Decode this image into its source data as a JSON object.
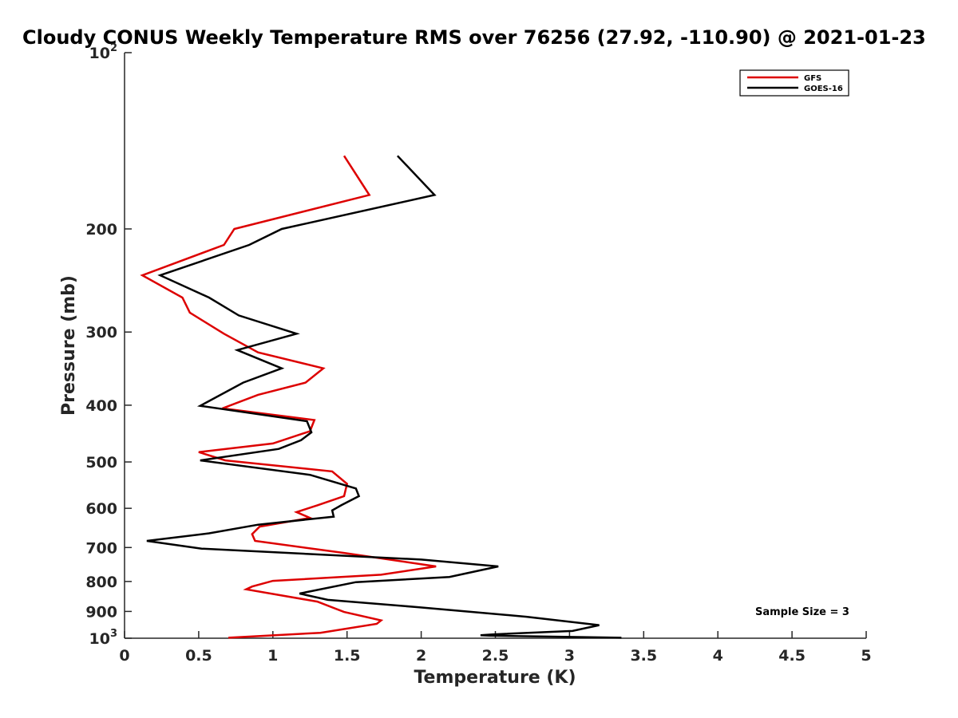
{
  "chart_data": {
    "type": "line",
    "title": "Cloudy CONUS Weekly Temperature RMS over 76256 (27.92, -110.90) @ 2021-01-23",
    "xlabel": "Temperature (K)",
    "ylabel": "Pressure (mb)",
    "xlim": [
      0,
      5
    ],
    "ylim": [
      100,
      1000
    ],
    "yscale": "log",
    "y_reversed": true,
    "grid": false,
    "legend_position": "top-right",
    "x_ticks": [
      {
        "value": 0,
        "label": "0"
      },
      {
        "value": 0.5,
        "label": "0.5"
      },
      {
        "value": 1,
        "label": "1"
      },
      {
        "value": 1.5,
        "label": "1.5"
      },
      {
        "value": 2,
        "label": "2"
      },
      {
        "value": 2.5,
        "label": "2.5"
      },
      {
        "value": 3,
        "label": "3"
      },
      {
        "value": 3.5,
        "label": "3.5"
      },
      {
        "value": 4,
        "label": "4"
      },
      {
        "value": 4.5,
        "label": "4.5"
      },
      {
        "value": 5,
        "label": "5"
      }
    ],
    "y_ticks": [
      {
        "value": 100,
        "label": "10",
        "sup": "2"
      },
      {
        "value": 200,
        "label": "200",
        "sup": ""
      },
      {
        "value": 300,
        "label": "300",
        "sup": ""
      },
      {
        "value": 400,
        "label": "400",
        "sup": ""
      },
      {
        "value": 500,
        "label": "500",
        "sup": ""
      },
      {
        "value": 600,
        "label": "600",
        "sup": ""
      },
      {
        "value": 700,
        "label": "700",
        "sup": ""
      },
      {
        "value": 800,
        "label": "800",
        "sup": ""
      },
      {
        "value": 900,
        "label": "900",
        "sup": ""
      },
      {
        "value": 1000,
        "label": "10",
        "sup": "3"
      }
    ],
    "series": [
      {
        "name": "GFS",
        "color": "#dd0000",
        "points": [
          [
            1.48,
            150
          ],
          [
            1.65,
            175
          ],
          [
            0.74,
            200
          ],
          [
            0.67,
            213
          ],
          [
            0.12,
            240
          ],
          [
            0.39,
            262
          ],
          [
            0.44,
            278
          ],
          [
            0.67,
            302
          ],
          [
            0.9,
            325
          ],
          [
            1.34,
            346
          ],
          [
            1.22,
            366
          ],
          [
            0.9,
            384
          ],
          [
            0.66,
            405
          ],
          [
            1.28,
            424
          ],
          [
            1.25,
            443
          ],
          [
            1.0,
            465
          ],
          [
            0.5,
            481
          ],
          [
            0.68,
            497
          ],
          [
            1.4,
            519
          ],
          [
            1.5,
            545
          ],
          [
            1.48,
            572
          ],
          [
            1.3,
            593
          ],
          [
            1.16,
            609
          ],
          [
            1.25,
            623
          ],
          [
            0.91,
            645
          ],
          [
            0.86,
            664
          ],
          [
            0.88,
            682
          ],
          [
            1.48,
            715
          ],
          [
            2.1,
            754
          ],
          [
            1.73,
            779
          ],
          [
            1.0,
            798
          ],
          [
            0.86,
            816
          ],
          [
            0.82,
            825
          ],
          [
            1.3,
            866
          ],
          [
            1.48,
            902
          ],
          [
            1.73,
            932
          ],
          [
            1.7,
            945
          ],
          [
            1.32,
            979
          ],
          [
            0.7,
            998
          ]
        ]
      },
      {
        "name": "GOES-16",
        "color": "#000000",
        "points": [
          [
            1.84,
            150
          ],
          [
            2.09,
            175
          ],
          [
            1.06,
            200
          ],
          [
            0.84,
            213
          ],
          [
            0.24,
            240
          ],
          [
            0.57,
            262
          ],
          [
            0.77,
            281
          ],
          [
            1.16,
            302
          ],
          [
            0.76,
            322
          ],
          [
            1.06,
            346
          ],
          [
            0.8,
            366
          ],
          [
            0.51,
            401
          ],
          [
            1.23,
            426
          ],
          [
            1.26,
            445
          ],
          [
            1.19,
            459
          ],
          [
            1.04,
            475
          ],
          [
            0.51,
            497
          ],
          [
            1.25,
            526
          ],
          [
            1.56,
            555
          ],
          [
            1.58,
            572
          ],
          [
            1.46,
            593
          ],
          [
            1.4,
            605
          ],
          [
            1.41,
            620
          ],
          [
            0.9,
            640
          ],
          [
            0.57,
            662
          ],
          [
            0.15,
            682
          ],
          [
            0.52,
            703
          ],
          [
            2.0,
            734
          ],
          [
            2.52,
            754
          ],
          [
            2.19,
            786
          ],
          [
            1.56,
            802
          ],
          [
            1.18,
            839
          ],
          [
            1.37,
            860
          ],
          [
            1.98,
            885
          ],
          [
            2.71,
            919
          ],
          [
            3.2,
            950
          ],
          [
            3.02,
            972
          ],
          [
            2.48,
            985
          ],
          [
            2.4,
            988
          ],
          [
            2.46,
            990
          ],
          [
            3.35,
            998
          ]
        ]
      }
    ],
    "annotations": [
      {
        "text": "Sample Size = 3",
        "position": "bottom-right"
      }
    ]
  }
}
